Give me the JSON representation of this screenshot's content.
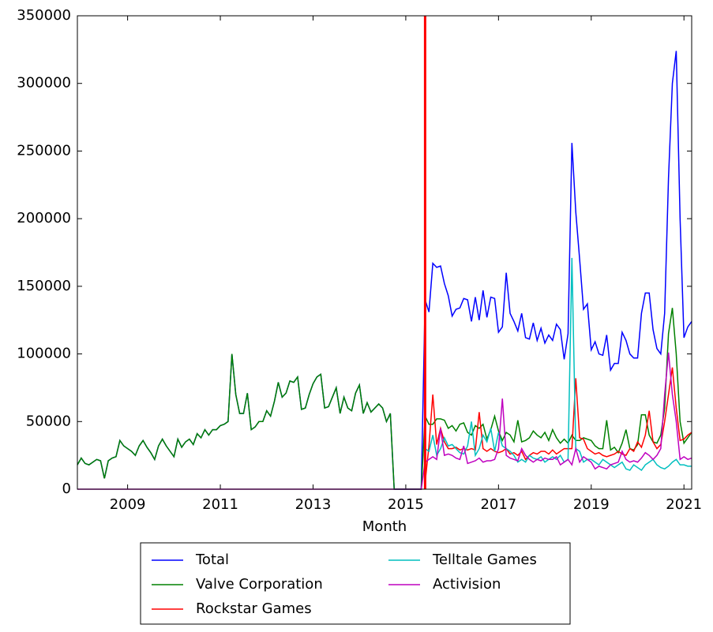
{
  "chart_data": {
    "type": "line",
    "xlabel": "Month",
    "x": [
      "2007-12",
      "2008-01",
      "2008-02",
      "2008-03",
      "2008-04",
      "2008-05",
      "2008-06",
      "2008-07",
      "2008-08",
      "2008-09",
      "2008-10",
      "2008-11",
      "2008-12",
      "2009-01",
      "2009-02",
      "2009-03",
      "2009-04",
      "2009-05",
      "2009-06",
      "2009-07",
      "2009-08",
      "2009-09",
      "2009-10",
      "2009-11",
      "2009-12",
      "2010-01",
      "2010-02",
      "2010-03",
      "2010-04",
      "2010-05",
      "2010-06",
      "2010-07",
      "2010-08",
      "2010-09",
      "2010-10",
      "2010-11",
      "2010-12",
      "2011-01",
      "2011-02",
      "2011-03",
      "2011-04",
      "2011-05",
      "2011-06",
      "2011-07",
      "2011-08",
      "2011-09",
      "2011-10",
      "2011-11",
      "2011-12",
      "2012-01",
      "2012-02",
      "2012-03",
      "2012-04",
      "2012-05",
      "2012-06",
      "2012-07",
      "2012-08",
      "2012-09",
      "2012-10",
      "2012-11",
      "2012-12",
      "2013-01",
      "2013-02",
      "2013-03",
      "2013-04",
      "2013-05",
      "2013-06",
      "2013-07",
      "2013-08",
      "2013-09",
      "2013-10",
      "2013-11",
      "2013-12",
      "2014-01",
      "2014-02",
      "2014-03",
      "2014-04",
      "2014-05",
      "2014-06",
      "2014-07",
      "2014-08",
      "2014-09",
      "2014-10",
      "2014-11",
      "2014-12",
      "2015-01",
      "2015-02",
      "2015-03",
      "2015-04",
      "2015-05",
      "2015-06",
      "2015-07",
      "2015-08",
      "2015-09",
      "2015-10",
      "2015-11",
      "2015-12",
      "2016-01",
      "2016-02",
      "2016-03",
      "2016-04",
      "2016-05",
      "2016-06",
      "2016-07",
      "2016-08",
      "2016-09",
      "2016-10",
      "2016-11",
      "2016-12",
      "2017-01",
      "2017-02",
      "2017-03",
      "2017-04",
      "2017-05",
      "2017-06",
      "2017-07",
      "2017-08",
      "2017-09",
      "2017-10",
      "2017-11",
      "2017-12",
      "2018-01",
      "2018-02",
      "2018-03",
      "2018-04",
      "2018-05",
      "2018-06",
      "2018-07",
      "2018-08",
      "2018-09",
      "2018-10",
      "2018-11",
      "2018-12",
      "2019-01",
      "2019-02",
      "2019-03",
      "2019-04",
      "2019-05",
      "2019-06",
      "2019-07",
      "2019-08",
      "2019-09",
      "2019-10",
      "2019-11",
      "2019-12",
      "2020-01",
      "2020-02",
      "2020-03",
      "2020-04",
      "2020-05",
      "2020-06",
      "2020-07",
      "2020-08",
      "2020-09",
      "2020-10",
      "2020-11",
      "2020-12",
      "2021-01",
      "2021-02",
      "2021-03"
    ],
    "series": [
      {
        "name": "Total",
        "color": "#0000ff",
        "values": [
          18000,
          23000,
          19000,
          18000,
          20000,
          22000,
          21000,
          8000,
          21000,
          23000,
          24000,
          36000,
          32000,
          30000,
          28000,
          25000,
          32000,
          36000,
          31000,
          27000,
          22000,
          32000,
          37000,
          32000,
          28000,
          24000,
          37000,
          31000,
          35000,
          37000,
          33000,
          41000,
          38000,
          44000,
          40000,
          44000,
          44000,
          47000,
          48000,
          50000,
          100000,
          70000,
          56000,
          56000,
          71000,
          44000,
          46000,
          50000,
          50000,
          58000,
          54000,
          65000,
          79000,
          68000,
          71000,
          80000,
          79000,
          83000,
          59000,
          60000,
          70000,
          78000,
          83000,
          85000,
          60000,
          61000,
          68000,
          75000,
          56000,
          68000,
          60000,
          58000,
          71000,
          77000,
          56000,
          64000,
          57000,
          60000,
          63000,
          60000,
          50000,
          56000,
          0,
          0,
          0,
          0,
          0,
          0,
          0,
          0,
          140000,
          131000,
          167000,
          164000,
          165000,
          152000,
          143000,
          128000,
          133000,
          134000,
          141000,
          140000,
          124000,
          142000,
          125000,
          147000,
          127000,
          142000,
          141000,
          116000,
          120000,
          160000,
          130000,
          124000,
          117000,
          130000,
          112000,
          111000,
          123000,
          110000,
          119000,
          108000,
          114000,
          110000,
          122000,
          118000,
          96000,
          115000,
          256000,
          205000,
          170000,
          133000,
          137000,
          103000,
          109000,
          100000,
          99000,
          114000,
          88000,
          93000,
          93000,
          116000,
          110000,
          100000,
          97000,
          97000,
          130000,
          145000,
          145000,
          118000,
          104000,
          100000,
          130000,
          230000,
          300000,
          324000,
          200000,
          112000,
          120000,
          124000
        ]
      },
      {
        "name": "Valve Corporation",
        "color": "#008000",
        "values": [
          18000,
          23000,
          19000,
          18000,
          20000,
          22000,
          21000,
          8000,
          21000,
          23000,
          24000,
          36000,
          32000,
          30000,
          28000,
          25000,
          32000,
          36000,
          31000,
          27000,
          22000,
          32000,
          37000,
          32000,
          28000,
          24000,
          37000,
          31000,
          35000,
          37000,
          33000,
          41000,
          38000,
          44000,
          40000,
          44000,
          44000,
          47000,
          48000,
          50000,
          100000,
          70000,
          56000,
          56000,
          71000,
          44000,
          46000,
          50000,
          50000,
          58000,
          54000,
          65000,
          79000,
          68000,
          71000,
          80000,
          79000,
          83000,
          59000,
          60000,
          70000,
          78000,
          83000,
          85000,
          60000,
          61000,
          68000,
          75000,
          56000,
          68000,
          60000,
          58000,
          71000,
          77000,
          56000,
          64000,
          57000,
          60000,
          63000,
          60000,
          50000,
          56000,
          0,
          0,
          0,
          0,
          0,
          0,
          0,
          0,
          54000,
          48000,
          48000,
          52000,
          52000,
          51000,
          45000,
          47000,
          43000,
          48000,
          49000,
          42000,
          40000,
          47000,
          45000,
          48000,
          37000,
          44000,
          54000,
          43000,
          36000,
          42000,
          40000,
          35000,
          51000,
          35000,
          36000,
          38000,
          43000,
          40000,
          38000,
          42000,
          36000,
          44000,
          38000,
          34000,
          37000,
          34000,
          40000,
          36000,
          36000,
          38000,
          37000,
          36000,
          32000,
          30000,
          30000,
          51000,
          29000,
          31000,
          27000,
          34000,
          44000,
          30000,
          29000,
          33000,
          55000,
          55000,
          40000,
          35000,
          34000,
          40000,
          60000,
          115000,
          134000,
          100000,
          50000,
          34000,
          38000,
          42000
        ]
      },
      {
        "name": "Rockstar Games",
        "color": "#ff0000",
        "values": [
          null,
          null,
          null,
          null,
          null,
          null,
          null,
          null,
          null,
          null,
          null,
          null,
          null,
          null,
          null,
          null,
          null,
          null,
          null,
          null,
          null,
          null,
          null,
          null,
          null,
          null,
          null,
          null,
          null,
          null,
          null,
          null,
          null,
          null,
          null,
          null,
          null,
          null,
          null,
          null,
          null,
          null,
          null,
          null,
          null,
          null,
          null,
          null,
          null,
          null,
          null,
          null,
          null,
          null,
          null,
          null,
          null,
          null,
          null,
          null,
          null,
          null,
          null,
          null,
          null,
          null,
          null,
          null,
          null,
          null,
          null,
          null,
          null,
          null,
          null,
          null,
          null,
          null,
          null,
          null,
          null,
          null,
          null,
          null,
          null,
          null,
          null,
          null,
          null,
          null,
          5000,
          32000,
          70000,
          33000,
          45000,
          35000,
          30000,
          30000,
          31000,
          29000,
          30000,
          29000,
          30000,
          29000,
          57000,
          30000,
          28000,
          30000,
          28000,
          27000,
          28000,
          30000,
          26000,
          27000,
          25000,
          28000,
          22000,
          25000,
          27000,
          26000,
          28000,
          28000,
          26000,
          29000,
          26000,
          28000,
          30000,
          30000,
          30000,
          82000,
          38000,
          37000,
          30000,
          28000,
          26000,
          27000,
          25000,
          24000,
          25000,
          26000,
          28000,
          26000,
          25000,
          30000,
          28000,
          35000,
          31000,
          40000,
          58000,
          35000,
          30000,
          33000,
          50000,
          70000,
          90000,
          60000,
          36000,
          37000,
          40000,
          42000
        ]
      },
      {
        "name": "Telltale Games",
        "color": "#00bfbf",
        "values": [
          null,
          null,
          null,
          null,
          null,
          null,
          null,
          null,
          null,
          null,
          null,
          null,
          null,
          null,
          null,
          null,
          null,
          null,
          null,
          null,
          null,
          null,
          null,
          null,
          null,
          null,
          null,
          null,
          null,
          null,
          null,
          null,
          null,
          null,
          null,
          null,
          null,
          null,
          null,
          null,
          null,
          null,
          null,
          null,
          null,
          null,
          null,
          null,
          null,
          null,
          null,
          null,
          null,
          null,
          null,
          null,
          null,
          null,
          null,
          null,
          null,
          null,
          null,
          null,
          null,
          null,
          null,
          null,
          null,
          null,
          null,
          null,
          null,
          null,
          null,
          null,
          null,
          null,
          null,
          null,
          null,
          null,
          null,
          null,
          null,
          null,
          null,
          null,
          null,
          null,
          30000,
          28000,
          40000,
          25000,
          30000,
          38000,
          32000,
          33000,
          30000,
          27000,
          26000,
          32000,
          50000,
          25000,
          30000,
          40000,
          35000,
          45000,
          28000,
          42000,
          32000,
          30000,
          28000,
          25000,
          20000,
          22000,
          20000,
          25000,
          23000,
          22000,
          24000,
          20000,
          22000,
          24000,
          22000,
          25000,
          20000,
          22000,
          171000,
          30000,
          28000,
          20000,
          22000,
          22000,
          20000,
          18000,
          22000,
          20000,
          18000,
          16000,
          18000,
          20000,
          15000,
          14000,
          18000,
          16000,
          14000,
          18000,
          20000,
          22000,
          18000,
          16000,
          15000,
          17000,
          20000,
          22000,
          18000,
          18000,
          17000,
          17000
        ]
      },
      {
        "name": "Activision",
        "color": "#bf00bf",
        "values": [
          0,
          0,
          0,
          0,
          0,
          0,
          0,
          0,
          0,
          0,
          0,
          0,
          0,
          0,
          0,
          0,
          0,
          0,
          0,
          0,
          0,
          0,
          0,
          0,
          0,
          0,
          0,
          0,
          0,
          0,
          0,
          0,
          0,
          0,
          0,
          0,
          0,
          0,
          0,
          0,
          0,
          0,
          0,
          0,
          0,
          0,
          0,
          0,
          0,
          0,
          0,
          0,
          0,
          0,
          0,
          0,
          0,
          0,
          0,
          0,
          0,
          0,
          0,
          0,
          0,
          0,
          0,
          0,
          0,
          0,
          0,
          0,
          0,
          0,
          0,
          0,
          0,
          0,
          0,
          0,
          0,
          0,
          0,
          0,
          0,
          0,
          0,
          0,
          0,
          0,
          20000,
          22000,
          24000,
          22000,
          45000,
          25000,
          26000,
          25000,
          23000,
          22000,
          32000,
          19000,
          20000,
          21000,
          23000,
          20000,
          21000,
          21000,
          22000,
          30000,
          67000,
          25000,
          23000,
          22000,
          21000,
          30000,
          25000,
          22000,
          20000,
          22000,
          21000,
          23000,
          22000,
          22000,
          24000,
          18000,
          20000,
          22000,
          18000,
          30000,
          20000,
          24000,
          22000,
          20000,
          15000,
          17000,
          16000,
          15000,
          18000,
          19000,
          20000,
          28000,
          22000,
          20000,
          21000,
          20000,
          23000,
          27000,
          25000,
          22000,
          25000,
          30000,
          70000,
          101000,
          70000,
          50000,
          22000,
          24000,
          22000,
          23000
        ]
      }
    ],
    "xlim": [
      "2007-12",
      "2021-03"
    ],
    "xticks": [
      {
        "value": "2009-01",
        "label": "2009"
      },
      {
        "value": "2011-01",
        "label": "2011"
      },
      {
        "value": "2013-01",
        "label": "2013"
      },
      {
        "value": "2015-01",
        "label": "2015"
      },
      {
        "value": "2017-01",
        "label": "2017"
      },
      {
        "value": "2019-01",
        "label": "2019"
      },
      {
        "value": "2021-01",
        "label": "2021"
      }
    ],
    "ylim": [
      0,
      350000
    ],
    "yticks": [
      0,
      50000,
      100000,
      150000,
      200000,
      250000,
      300000,
      350000
    ],
    "vline": {
      "x": "2015-06",
      "color": "#ff0000"
    },
    "grid": false,
    "legend": {
      "loc": "below",
      "ncol": 2
    }
  }
}
